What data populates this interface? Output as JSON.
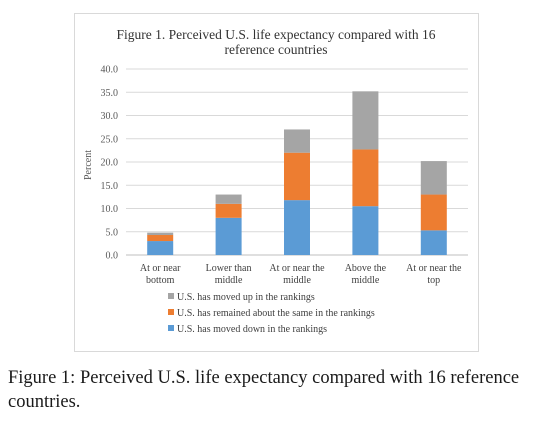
{
  "chart_data": {
    "type": "bar",
    "stacked": true,
    "title_line1": "Figure 1. Perceived U.S. life expectancy compared with 16",
    "title_line2": "reference countries",
    "ylabel": "Percent",
    "ylim": [
      0,
      40
    ],
    "yticks": [
      "0.0",
      "5.0",
      "10.0",
      "15.0",
      "20.0",
      "25.0",
      "30.0",
      "35.0",
      "40.0"
    ],
    "grid": true,
    "legend_position": "bottom",
    "categories": [
      [
        "At or near",
        "bottom"
      ],
      [
        "Lower than",
        "middle"
      ],
      [
        "At or near the",
        "middle"
      ],
      [
        "Above the",
        "middle"
      ],
      [
        "At or near the",
        "top"
      ]
    ],
    "series": [
      {
        "name": "U.S. has moved down in the rankings",
        "color": "#5b9bd5",
        "values": [
          3.0,
          8.0,
          11.8,
          10.5,
          5.3
        ]
      },
      {
        "name": "U.S. has remained about the same in the rankings",
        "color": "#ed7d31",
        "values": [
          1.3,
          3.0,
          10.2,
          12.2,
          7.7
        ]
      },
      {
        "name": "U.S. has moved up in the rankings",
        "color": "#a5a5a5",
        "values": [
          0.5,
          2.0,
          5.0,
          12.5,
          7.2
        ]
      }
    ],
    "legend_order": [
      2,
      1,
      0
    ]
  },
  "caption": {
    "label": "Figure 1:",
    "text": " Perceived U.S. life expectancy compared with 16 reference countries."
  }
}
